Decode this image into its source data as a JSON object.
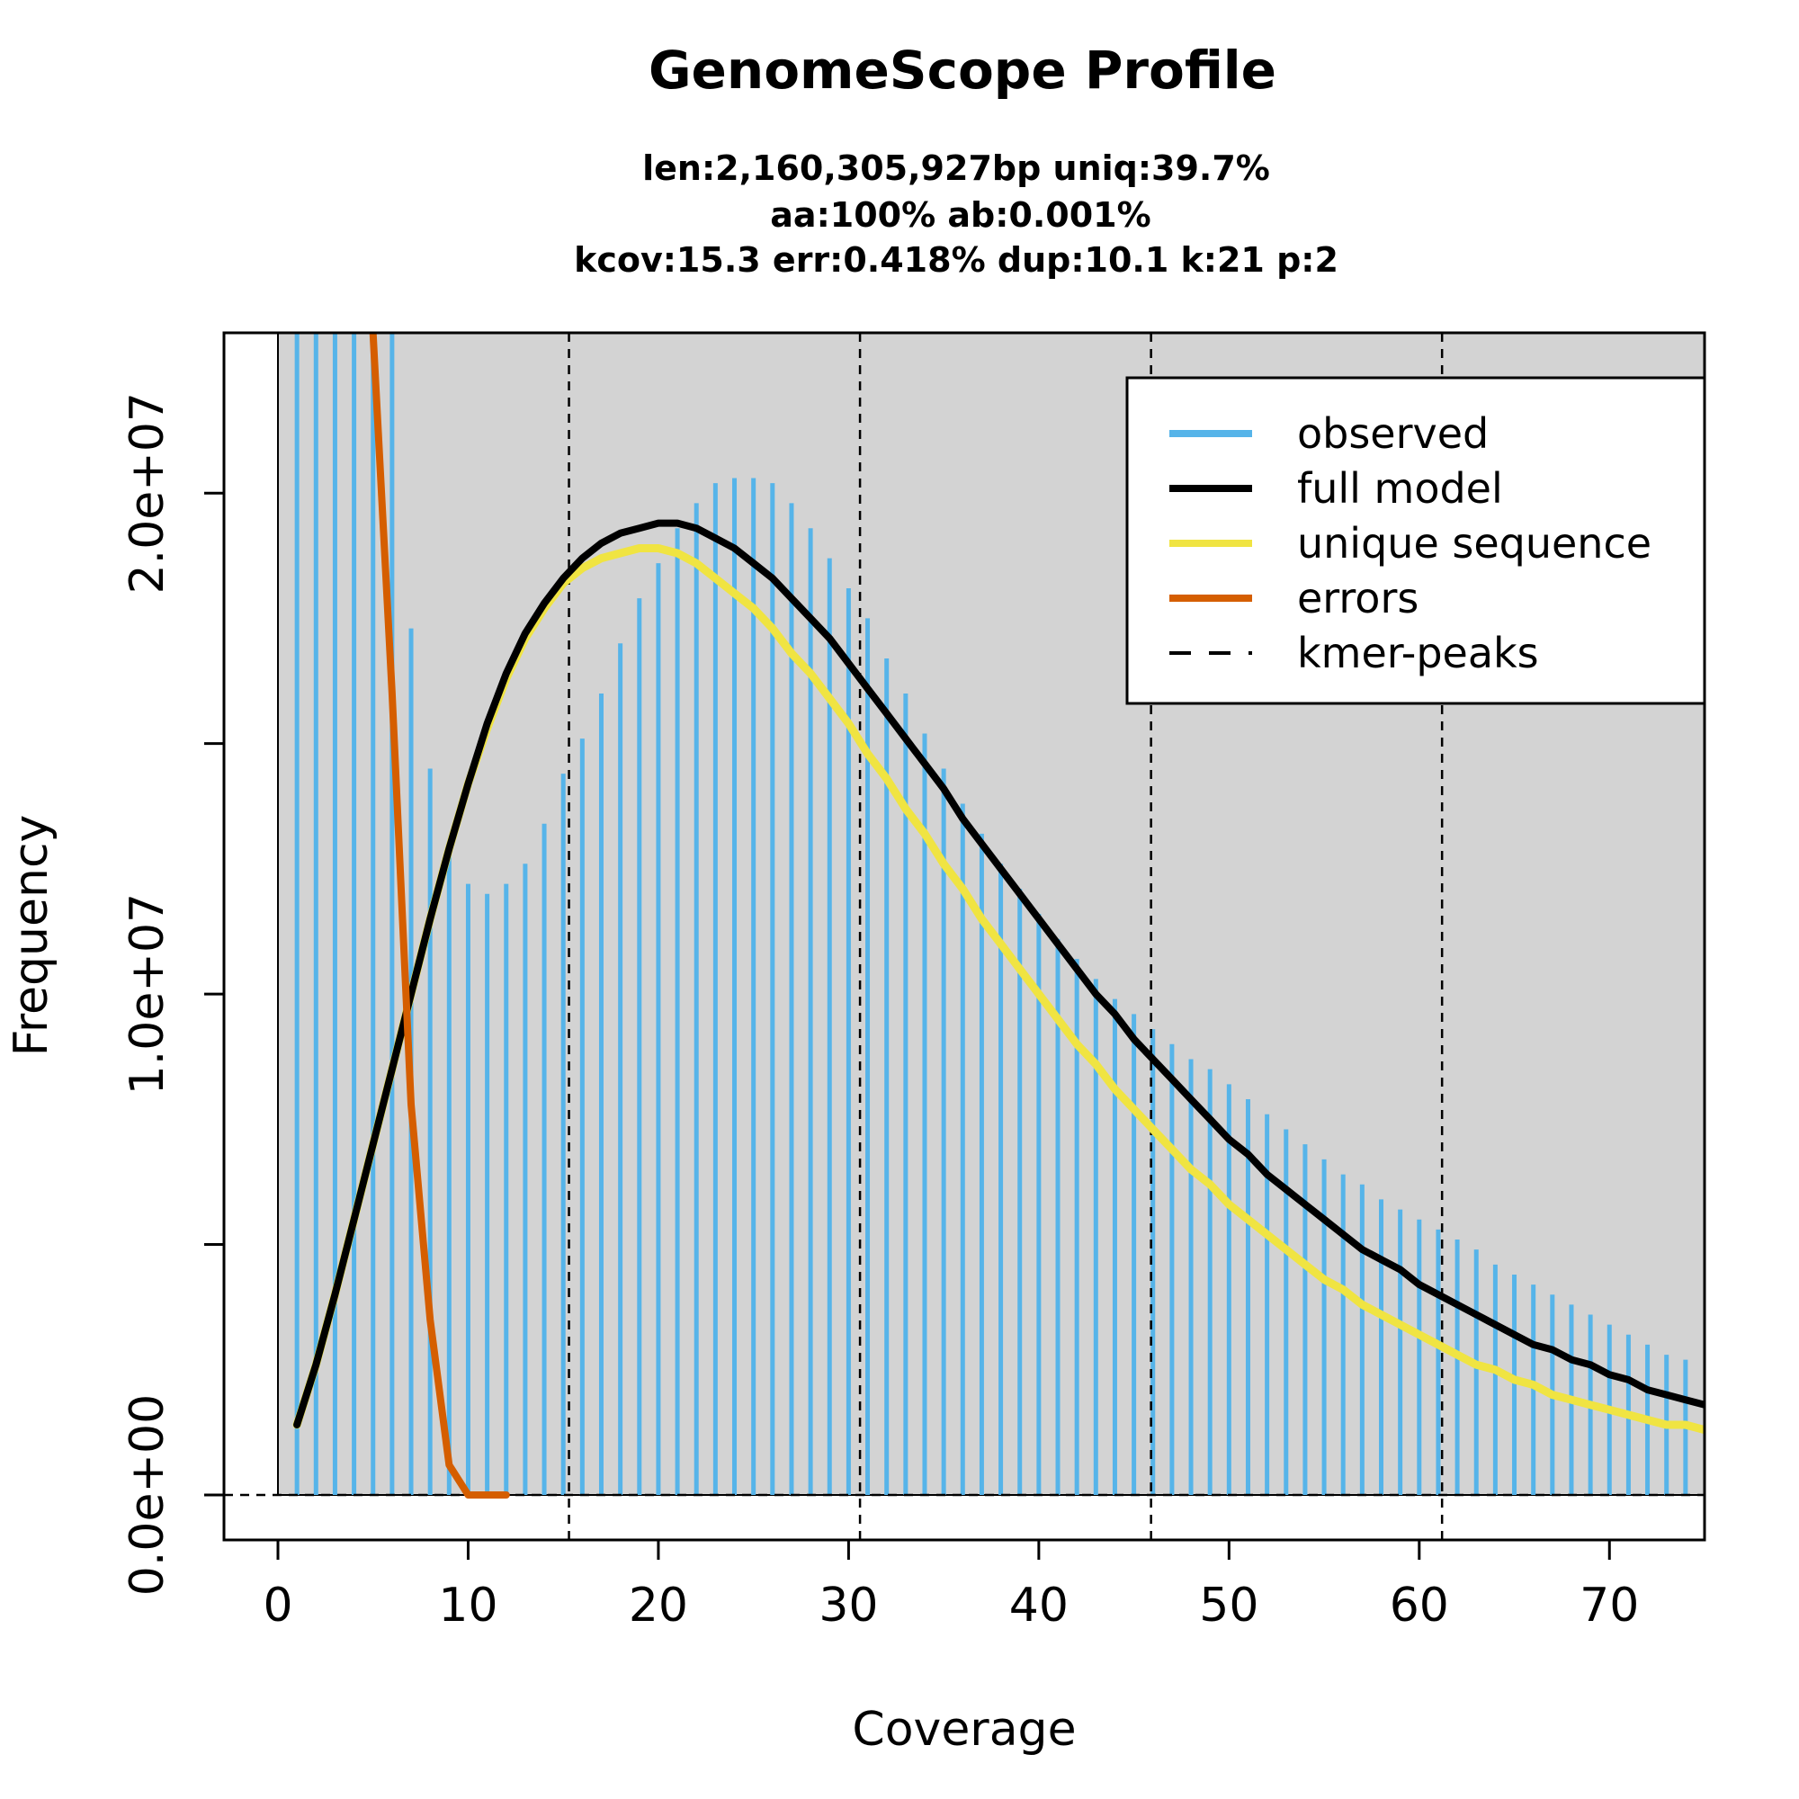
{
  "chart_data": {
    "type": "bar",
    "title": "GenomeScope Profile",
    "subtitle_lines": [
      "len:2,160,305,927bp uniq:39.7%",
      "aa:100% ab:0.001%",
      "kcov:15.3 err:0.418%  dup:10.1  k:21 p:2"
    ],
    "xlabel": "Coverage",
    "ylabel": "Frequency",
    "xlim": [
      0,
      75
    ],
    "ylim": [
      0,
      23200000
    ],
    "x_ticks": [
      0,
      10,
      20,
      30,
      40,
      50,
      60,
      70
    ],
    "x_tick_labels": [
      "0",
      "10",
      "20",
      "30",
      "40",
      "50",
      "60",
      "70"
    ],
    "y_ticks": [
      0,
      5000000,
      10000000,
      15000000,
      20000000
    ],
    "y_tick_labels": [
      "0.0e+00",
      "",
      "1.0e+07",
      "",
      "2.0e+07"
    ],
    "legend_position": "top-right",
    "colors": {
      "observed": "#56B4E9",
      "full_model": "#000000",
      "unique_sequence": "#F0E442",
      "errors": "#D55E00",
      "kmer_peaks": "#000000",
      "plot_background": "#D3D3D3"
    },
    "legend": [
      {
        "label": "observed",
        "color": "#56B4E9",
        "style": "solid"
      },
      {
        "label": "full model",
        "color": "#000000",
        "style": "solid"
      },
      {
        "label": "unique sequence",
        "color": "#F0E442",
        "style": "solid"
      },
      {
        "label": "errors",
        "color": "#D55E00",
        "style": "solid"
      },
      {
        "label": "kmer-peaks",
        "color": "#000000",
        "style": "dashed"
      }
    ],
    "kmer_peaks": [
      15.3,
      30.6,
      45.9,
      61.2
    ],
    "observed": {
      "x": [
        1,
        2,
        3,
        4,
        5,
        6,
        7,
        8,
        9,
        10,
        11,
        12,
        13,
        14,
        15,
        16,
        17,
        18,
        19,
        20,
        21,
        22,
        23,
        24,
        25,
        26,
        27,
        28,
        29,
        30,
        31,
        32,
        33,
        34,
        35,
        36,
        37,
        38,
        39,
        40,
        41,
        42,
        43,
        44,
        45,
        46,
        47,
        48,
        49,
        50,
        51,
        52,
        53,
        54,
        55,
        56,
        57,
        58,
        59,
        60,
        61,
        62,
        63,
        64,
        65,
        66,
        67,
        68,
        69,
        70,
        71,
        72,
        73,
        74
      ],
      "y": [
        23200000,
        23200000,
        23200000,
        23200000,
        23200000,
        23200000,
        17300000,
        14500000,
        12900000,
        12200000,
        12000000,
        12200000,
        12600000,
        13400000,
        14400000,
        15100000,
        16000000,
        17000000,
        17900000,
        18600000,
        19300000,
        19800000,
        20200000,
        20300000,
        20300000,
        20200000,
        19800000,
        19300000,
        18700000,
        18100000,
        17500000,
        16700000,
        16000000,
        15200000,
        14500000,
        13800000,
        13200000,
        12600000,
        12100000,
        11600000,
        11100000,
        10700000,
        10300000,
        9900000,
        9600000,
        9300000,
        9000000,
        8700000,
        8500000,
        8200000,
        7900000,
        7600000,
        7300000,
        7000000,
        6700000,
        6400000,
        6200000,
        5900000,
        5700000,
        5500000,
        5300000,
        5100000,
        4900000,
        4600000,
        4400000,
        4200000,
        4000000,
        3800000,
        3600000,
        3400000,
        3200000,
        3000000,
        2800000,
        2700000
      ]
    },
    "full_model": {
      "x": [
        1,
        2,
        3,
        4,
        5,
        6,
        7,
        8,
        9,
        10,
        11,
        12,
        13,
        14,
        15,
        16,
        17,
        18,
        19,
        20,
        21,
        22,
        23,
        24,
        25,
        26,
        27,
        28,
        29,
        30,
        31,
        32,
        33,
        34,
        35,
        36,
        37,
        38,
        39,
        40,
        41,
        42,
        43,
        44,
        45,
        46,
        47,
        48,
        49,
        50,
        51,
        52,
        53,
        54,
        55,
        56,
        57,
        58,
        59,
        60,
        61,
        62,
        63,
        64,
        65,
        66,
        67,
        68,
        69,
        70,
        71,
        72,
        73,
        74,
        75
      ],
      "y": [
        1400000,
        2600000,
        4000000,
        5500000,
        7000000,
        8500000,
        10000000,
        11500000,
        12900000,
        14200000,
        15400000,
        16400000,
        17200000,
        17800000,
        18300000,
        18700000,
        19000000,
        19200000,
        19300000,
        19400000,
        19400000,
        19300000,
        19100000,
        18900000,
        18600000,
        18300000,
        17900000,
        17500000,
        17100000,
        16600000,
        16100000,
        15600000,
        15100000,
        14600000,
        14100000,
        13500000,
        13000000,
        12500000,
        12000000,
        11500000,
        11000000,
        10500000,
        10000000,
        9600000,
        9100000,
        8700000,
        8300000,
        7900000,
        7500000,
        7100000,
        6800000,
        6400000,
        6100000,
        5800000,
        5500000,
        5200000,
        4900000,
        4700000,
        4500000,
        4200000,
        4000000,
        3800000,
        3600000,
        3400000,
        3200000,
        3000000,
        2900000,
        2700000,
        2600000,
        2400000,
        2300000,
        2100000,
        2000000,
        1900000,
        1800000
      ]
    },
    "unique_sequence": {
      "x": [
        1,
        2,
        3,
        4,
        5,
        6,
        7,
        8,
        9,
        10,
        11,
        12,
        13,
        14,
        15,
        16,
        17,
        18,
        19,
        20,
        21,
        22,
        23,
        24,
        25,
        26,
        27,
        28,
        29,
        30,
        31,
        32,
        33,
        34,
        35,
        36,
        37,
        38,
        39,
        40,
        41,
        42,
        43,
        44,
        45,
        46,
        47,
        48,
        49,
        50,
        51,
        52,
        53,
        54,
        55,
        56,
        57,
        58,
        59,
        60,
        61,
        62,
        63,
        64,
        65,
        66,
        67,
        68,
        69,
        70,
        71,
        72,
        73,
        74,
        75
      ],
      "y": [
        1400000,
        2600000,
        4000000,
        5500000,
        7000000,
        8500000,
        10000000,
        11500000,
        12900000,
        14200000,
        15300000,
        16300000,
        17100000,
        17700000,
        18200000,
        18500000,
        18700000,
        18800000,
        18900000,
        18900000,
        18800000,
        18600000,
        18300000,
        18000000,
        17700000,
        17300000,
        16800000,
        16400000,
        15900000,
        15400000,
        14800000,
        14300000,
        13700000,
        13200000,
        12600000,
        12100000,
        11500000,
        11000000,
        10500000,
        10000000,
        9500000,
        9000000,
        8600000,
        8100000,
        7700000,
        7300000,
        6900000,
        6500000,
        6200000,
        5800000,
        5500000,
        5200000,
        4900000,
        4600000,
        4300000,
        4100000,
        3800000,
        3600000,
        3400000,
        3200000,
        3000000,
        2800000,
        2600000,
        2500000,
        2300000,
        2200000,
        2000000,
        1900000,
        1800000,
        1700000,
        1600000,
        1500000,
        1400000,
        1400000,
        1300000
      ]
    },
    "errors": {
      "x": [
        5,
        6,
        7,
        8,
        9,
        10,
        11,
        12
      ],
      "y": [
        23200000,
        16000000,
        7800000,
        3500000,
        600000,
        0,
        0,
        0
      ]
    }
  }
}
